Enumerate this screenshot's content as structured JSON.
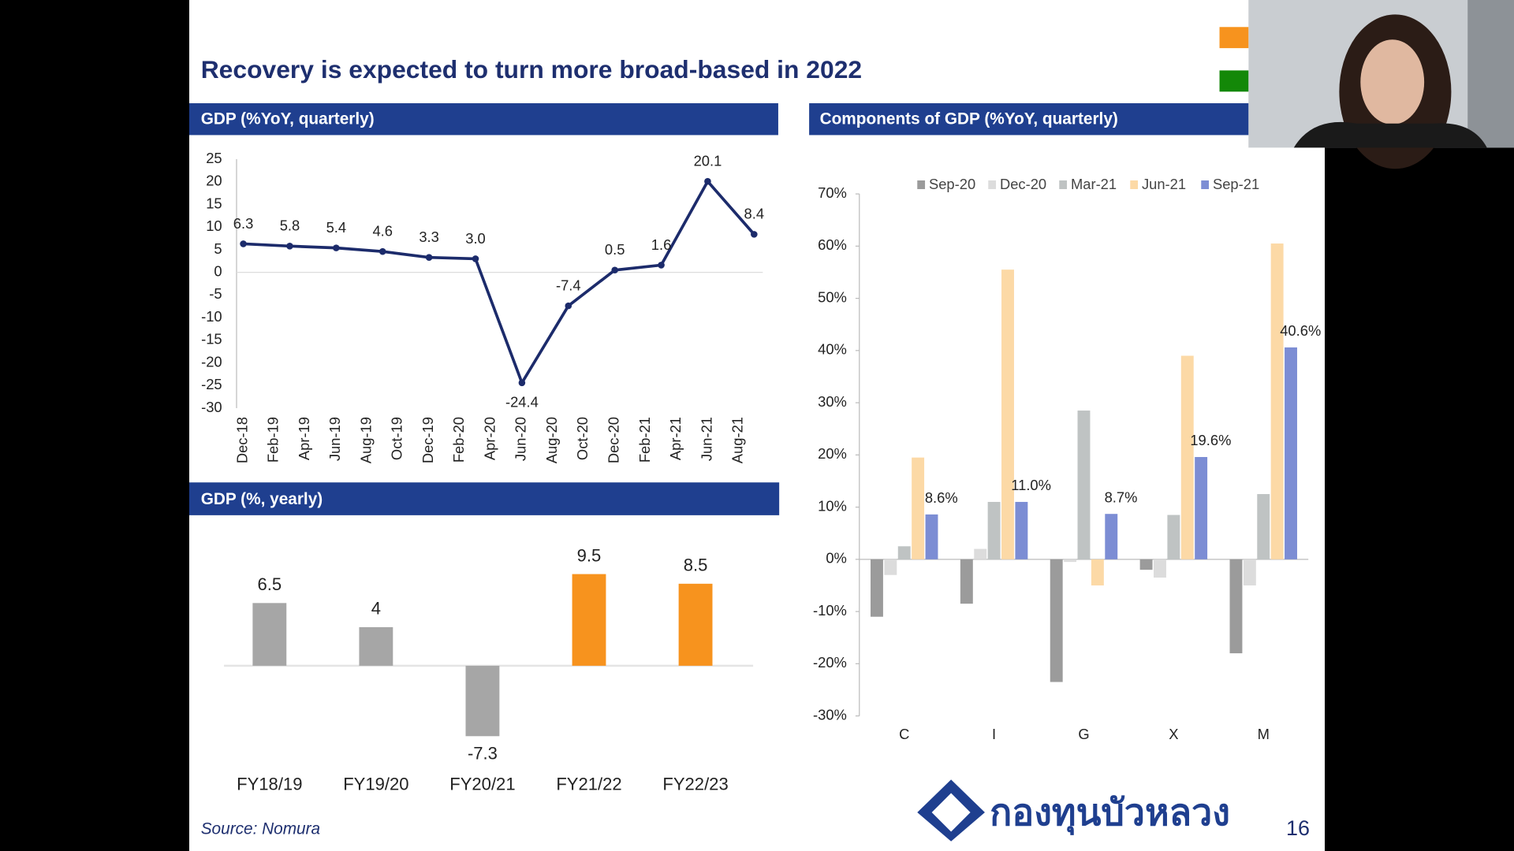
{
  "title": "Recovery is expected to turn more broad-based in 2022",
  "source": "Source:  Nomura",
  "logo_text": "กองทุนบัวหลวง",
  "page_number": "16",
  "chart_data": [
    {
      "type": "line",
      "title": "GDP (%YoY, quarterly)",
      "xticks": [
        {
          "value": 0,
          "label": "Dec-18"
        },
        {
          "value": 1,
          "label": "Feb-19"
        },
        {
          "value": 2,
          "label": "Apr-19"
        },
        {
          "value": 3,
          "label": "Jun-19"
        },
        {
          "value": 4,
          "label": "Aug-19"
        },
        {
          "value": 5,
          "label": "Oct-19"
        },
        {
          "value": 6,
          "label": "Dec-19"
        },
        {
          "value": 7,
          "label": "Feb-20"
        },
        {
          "value": 8,
          "label": "Apr-20"
        },
        {
          "value": 9,
          "label": "Jun-20"
        },
        {
          "value": 10,
          "label": "Aug-20"
        },
        {
          "value": 11,
          "label": "Oct-20"
        },
        {
          "value": 12,
          "label": "Dec-20"
        },
        {
          "value": 13,
          "label": "Feb-21"
        },
        {
          "value": 14,
          "label": "Apr-21"
        },
        {
          "value": 15,
          "label": "Jun-21"
        },
        {
          "value": 16,
          "label": "Aug-21"
        }
      ],
      "xlim": [
        0,
        16.5
      ],
      "x": [
        0,
        1.5,
        3,
        4.5,
        6,
        7.5,
        9,
        10.5,
        12,
        13.5,
        15,
        16.5
      ],
      "values": [
        6.3,
        5.8,
        5.4,
        4.6,
        3.3,
        3.0,
        -24.4,
        -7.4,
        0.5,
        1.6,
        20.1,
        8.4
      ],
      "value_labels": [
        "6.3",
        "5.8",
        "5.4",
        "4.6",
        "3.3",
        "3.0",
        "-24.4",
        "-7.4",
        "0.5",
        "1.6",
        "20.1",
        "8.4"
      ],
      "color": "#1c2b6b",
      "ylim": [
        -30,
        25
      ],
      "yticks": [
        25,
        20,
        15,
        10,
        5,
        0,
        -5,
        -10,
        -15,
        -20,
        -25,
        -30
      ]
    },
    {
      "type": "bar",
      "title": "GDP (%, yearly)",
      "categories": [
        "FY18/19",
        "FY19/20",
        "FY20/21",
        "FY21/22",
        "FY22/23"
      ],
      "values": [
        6.5,
        4,
        -7.3,
        9.5,
        8.5
      ],
      "colors": [
        "#a6a6a6",
        "#a6a6a6",
        "#a6a6a6",
        "#f7931e",
        "#f7931e"
      ]
    },
    {
      "type": "grouped_bar",
      "title": "Components of GDP (%YoY, quarterly)",
      "categories": [
        "C",
        "I",
        "G",
        "X",
        "M"
      ],
      "legend": "top",
      "series": [
        {
          "name": "Sep-20",
          "color": "#9b9b9b",
          "values": [
            -11,
            -8.5,
            -23.5,
            -2,
            -18
          ]
        },
        {
          "name": "Dec-20",
          "color": "#dcdcdc",
          "values": [
            -3,
            2,
            -0.5,
            -3.5,
            -5
          ]
        },
        {
          "name": "Mar-21",
          "color": "#bfc3c3",
          "values": [
            2.5,
            11,
            28.5,
            8.5,
            12.5
          ]
        },
        {
          "name": "Jun-21",
          "color": "#fcd9a6",
          "values": [
            19.5,
            55.5,
            -5,
            39,
            60.5
          ]
        },
        {
          "name": "Sep-21",
          "color": "#7c8dd4",
          "values": [
            8.6,
            11.0,
            8.7,
            19.6,
            40.6
          ],
          "value_labels": [
            "8.6%",
            "11.0%",
            "8.7%",
            "19.6%",
            "40.6%"
          ]
        }
      ],
      "ylim": [
        -30,
        70
      ],
      "yticks": [
        {
          "value": 70,
          "label": "70%"
        },
        {
          "value": 60,
          "label": "60%"
        },
        {
          "value": 50,
          "label": "50%"
        },
        {
          "value": 40,
          "label": "40%"
        },
        {
          "value": 30,
          "label": "30%"
        },
        {
          "value": 20,
          "label": "20%"
        },
        {
          "value": 10,
          "label": "10%"
        },
        {
          "value": 0,
          "label": "0%"
        },
        {
          "value": -10,
          "label": "-10%"
        },
        {
          "value": -20,
          "label": "-20%"
        },
        {
          "value": -30,
          "label": "-30%"
        }
      ]
    }
  ]
}
